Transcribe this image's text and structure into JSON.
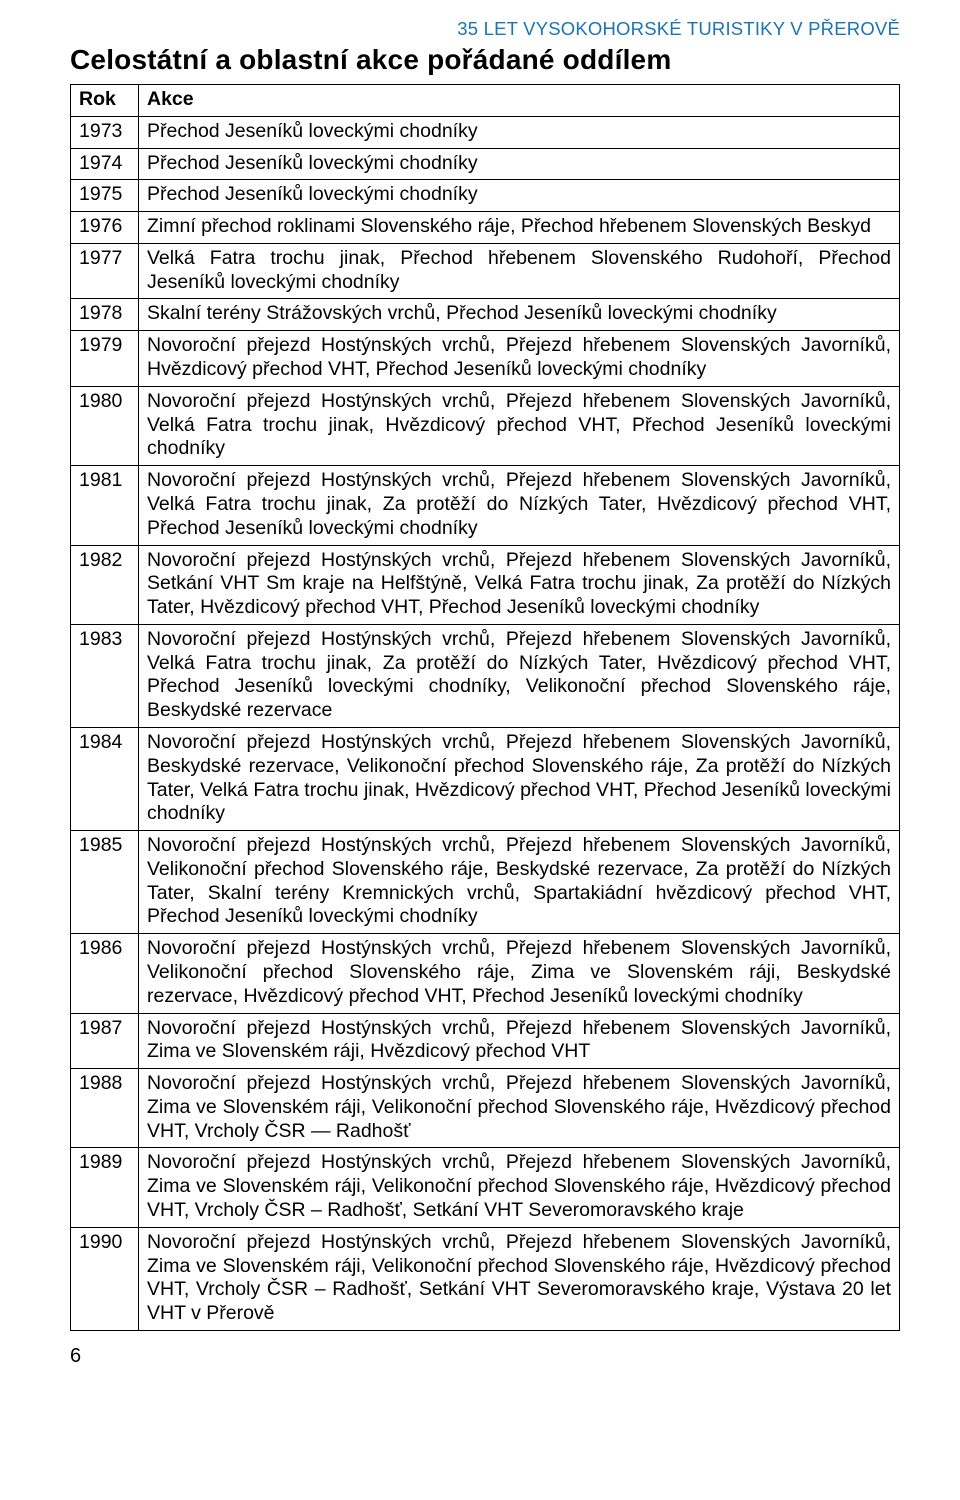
{
  "header_right": "35 LET VYSOKOHORSKÉ TURISTIKY V PŘEROVĚ",
  "header_color": "#1a74b5",
  "title": "Celostátní a oblastní akce pořádané oddílem",
  "table": {
    "columns": [
      "Rok",
      "Akce"
    ],
    "rows": [
      [
        "1973",
        "Přechod Jeseníků loveckými chodníky"
      ],
      [
        "1974",
        "Přechod Jeseníků loveckými chodníky"
      ],
      [
        "1975",
        "Přechod Jeseníků loveckými chodníky"
      ],
      [
        "1976",
        "Zimní přechod roklinami Slovenského ráje, Přechod hřebenem Slovenských Beskyd"
      ],
      [
        "1977",
        "Velká Fatra trochu jinak, Přechod hřebenem Slovenského Rudohoří, Přechod Jeseníků loveckými chodníky"
      ],
      [
        "1978",
        "Skalní terény Strážovských vrchů, Přechod Jeseníků loveckými chodníky"
      ],
      [
        "1979",
        "Novoroční přejezd Hostýnských vrchů, Přejezd hřebenem Slovenských Javorníků, Hvězdicový přechod VHT, Přechod Jeseníků loveckými chodníky"
      ],
      [
        "1980",
        "Novoroční přejezd Hostýnských vrchů, Přejezd hřebenem Slovenských Javorníků, Velká Fatra trochu jinak, Hvězdicový přechod VHT, Přechod Jeseníků loveckými chodníky"
      ],
      [
        "1981",
        "Novoroční přejezd Hostýnských vrchů, Přejezd hřebenem Slovenských Javorníků, Velká Fatra trochu jinak, Za protěží do Nízkých Tater, Hvězdicový přechod VHT, Přechod Jeseníků loveckými chodníky"
      ],
      [
        "1982",
        "Novoroční přejezd Hostýnských vrchů, Přejezd hřebenem Slovenských Javorníků, Setkání VHT Sm kraje na Helfštýně, Velká Fatra trochu jinak, Za protěží do Nízkých Tater, Hvězdicový přechod VHT, Přechod Jeseníků loveckými chodníky"
      ],
      [
        "1983",
        "Novoroční přejezd Hostýnských vrchů, Přejezd hřebenem Slovenských Javorníků, Velká Fatra trochu jinak, Za protěží do Nízkých Tater, Hvězdicový přechod VHT, Přechod Jeseníků loveckými chodníky, Velikonoční přechod Slovenského ráje, Beskydské rezervace"
      ],
      [
        "1984",
        "Novoroční přejezd Hostýnských vrchů, Přejezd hřebenem Slovenských Javorníků, Beskydské rezervace, Velikonoční přechod Slovenského ráje, Za protěží do Nízkých Tater, Velká Fatra trochu jinak, Hvězdicový přechod VHT, Přechod Jeseníků loveckými chodníky"
      ],
      [
        "1985",
        "Novoroční přejezd Hostýnských vrchů, Přejezd hřebenem Slovenských Javorníků, Velikonoční přechod Slovenského ráje, Beskydské rezervace, Za protěží do Nízkých Tater, Skalní terény Kremnických vrchů, Spartakiádní hvězdicový přechod VHT, Přechod Jeseníků loveckými chodníky"
      ],
      [
        "1986",
        "Novoroční přejezd Hostýnských vrchů, Přejezd hřebenem Slovenských Javorníků, Velikonoční přechod Slovenského ráje, Zima ve Slovenském ráji, Beskydské rezervace, Hvězdicový přechod VHT, Přechod Jeseníků loveckými chodníky"
      ],
      [
        "1987",
        "Novoroční přejezd Hostýnských vrchů, Přejezd hřebenem Slovenských Javorníků, Zima ve Slovenském ráji, Hvězdicový přechod VHT"
      ],
      [
        "1988",
        "Novoroční přejezd Hostýnských vrchů, Přejezd hřebenem Slovenských Javorníků, Zima ve Slovenském ráji, Velikonoční přechod Slovenského ráje, Hvězdicový přechod VHT, Vrcholy ČSR — Radhošť"
      ],
      [
        "1989",
        "Novoroční přejezd Hostýnských vrchů, Přejezd hřebenem Slovenských Javorníků, Zima ve Slovenském ráji, Velikonoční přechod Slovenského ráje, Hvězdicový přechod VHT, Vrcholy ČSR – Radhošť, Setkání VHT Severomoravského kraje"
      ],
      [
        "1990",
        "Novoroční přejezd Hostýnských vrchů, Přejezd hřebenem Slovenských Javorníků, Zima ve Slovenském ráji, Velikonoční přechod Slovenského ráje, Hvězdicový přechod VHT, Vrcholy ČSR – Radhošť, Setkání VHT Severomoravského kraje, Výstava 20 let VHT v Přerově"
      ]
    ]
  },
  "page_number": "6"
}
